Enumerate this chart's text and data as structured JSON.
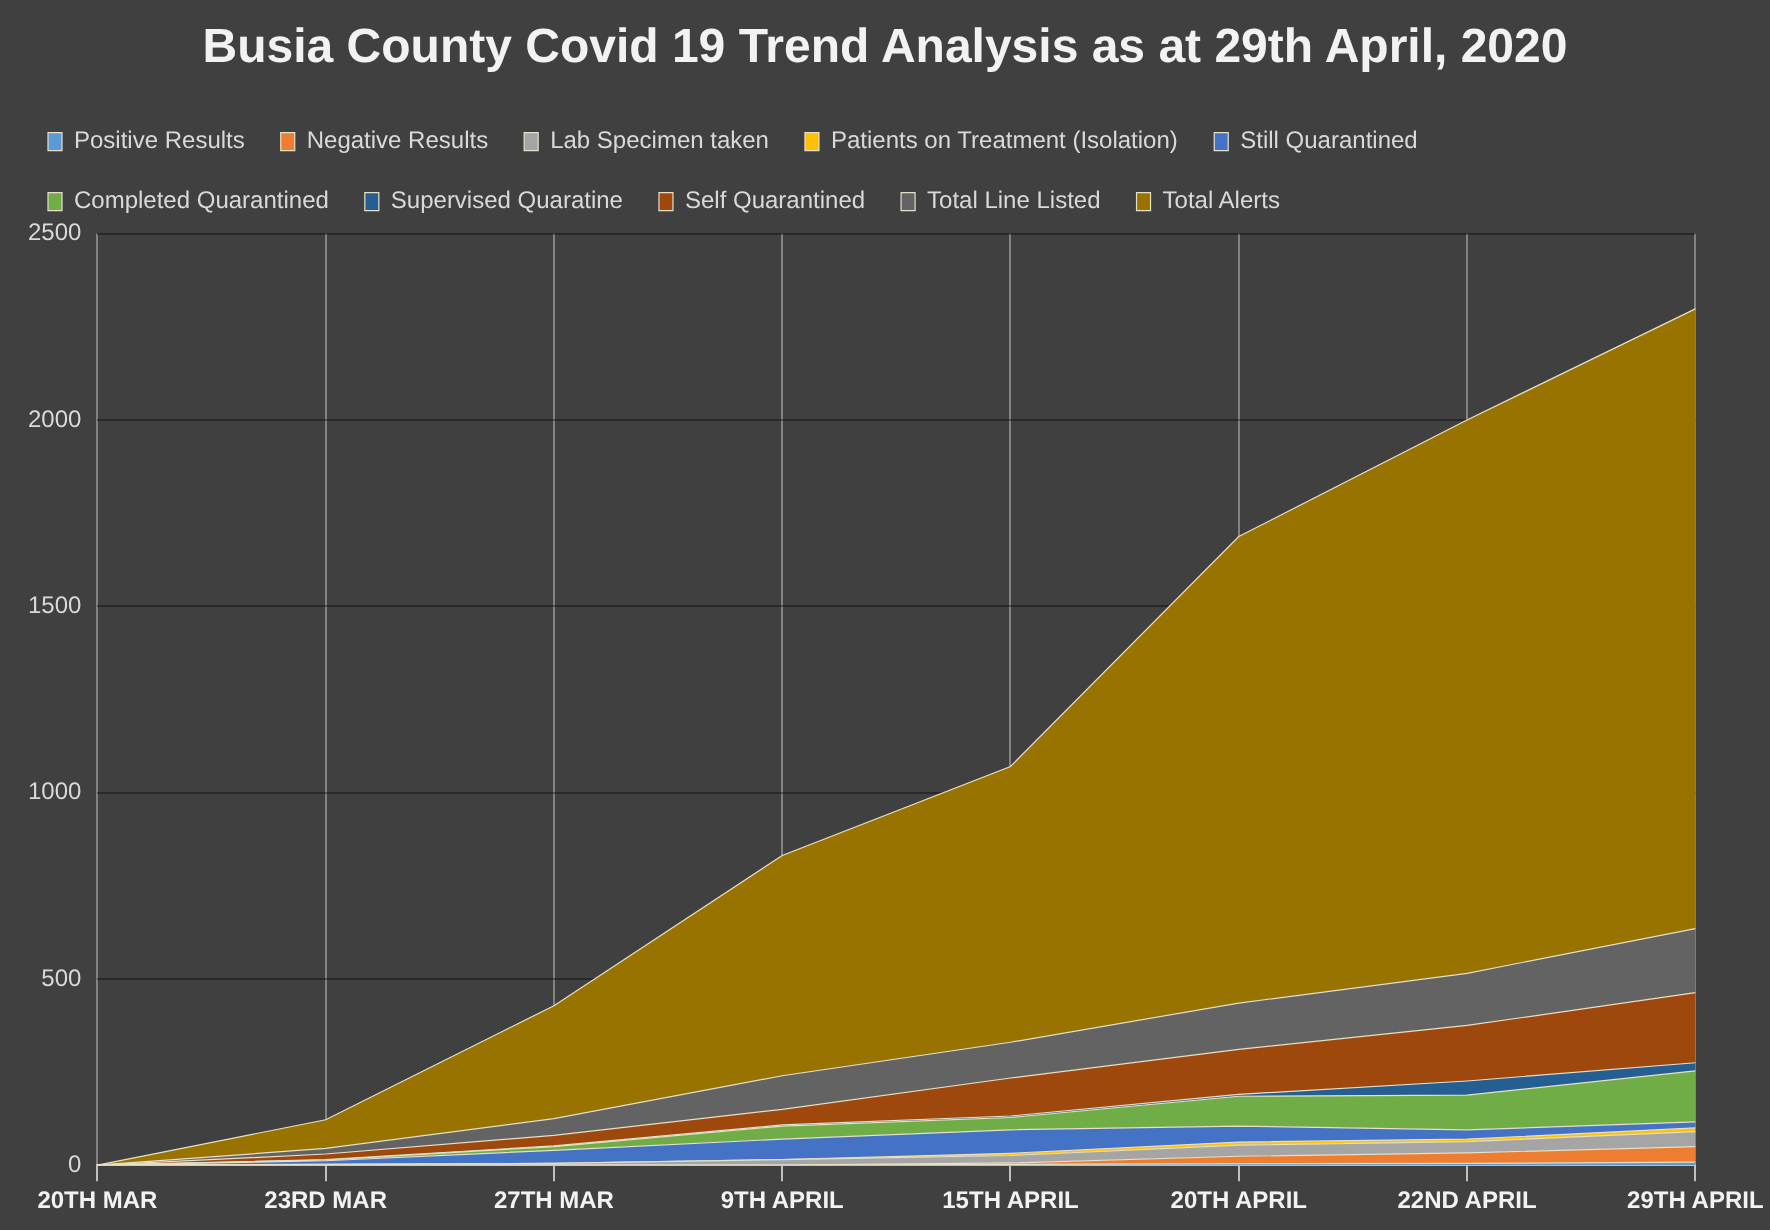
{
  "chart_data": {
    "type": "area",
    "title": "Busia County Covid 19 Trend Analysis as at 29th April, 2020",
    "categories": [
      "20TH MAR",
      "23RD MAR",
      "27TH MAR",
      "9TH APRIL",
      "15TH APRIL",
      "20TH APRIL",
      "22ND APRIL",
      "29TH APRIL"
    ],
    "stacked": true,
    "series": [
      {
        "name": "Positive Results",
        "color": "#5b9bd5",
        "values": [
          0,
          0,
          0,
          0,
          2,
          4,
          5,
          8
        ]
      },
      {
        "name": "Negative Results",
        "color": "#ed7d31",
        "values": [
          0,
          0,
          0,
          0,
          4,
          20,
          28,
          42
        ]
      },
      {
        "name": "Lab Specimen taken",
        "color": "#a5a5a5",
        "values": [
          0,
          2,
          5,
          15,
          20,
          30,
          30,
          40
        ]
      },
      {
        "name": "Patients on Treatment (Isolation)",
        "color": "#ffc000",
        "values": [
          0,
          0,
          0,
          0,
          6,
          8,
          7,
          10
        ]
      },
      {
        "name": "Still Quarantined",
        "color": "#4472c4",
        "values": [
          0,
          10,
          35,
          55,
          63,
          43,
          25,
          16
        ]
      },
      {
        "name": "Completed Quarantined",
        "color": "#70ad47",
        "values": [
          0,
          2,
          10,
          35,
          33,
          80,
          93,
          137
        ]
      },
      {
        "name": "Supervised Quaratine",
        "color": "#255e91",
        "values": [
          0,
          1,
          2,
          3,
          4,
          5,
          38,
          22
        ]
      },
      {
        "name": "Self Quarantined",
        "color": "#9e480e",
        "values": [
          0,
          15,
          28,
          42,
          102,
          121,
          149,
          188
        ]
      },
      {
        "name": "Total Line Listed",
        "color": "#636363",
        "values": [
          0,
          15,
          45,
          90,
          96,
          124,
          140,
          172
        ]
      },
      {
        "name": "Total Alerts",
        "color": "#997300",
        "values": [
          0,
          77,
          303,
          591,
          740,
          1252,
          1485,
          1663
        ]
      }
    ],
    "ylim": [
      0,
      2500
    ],
    "yticks": [
      0,
      500,
      1000,
      1500,
      2000,
      2500
    ],
    "grid": true,
    "legend": "top"
  }
}
